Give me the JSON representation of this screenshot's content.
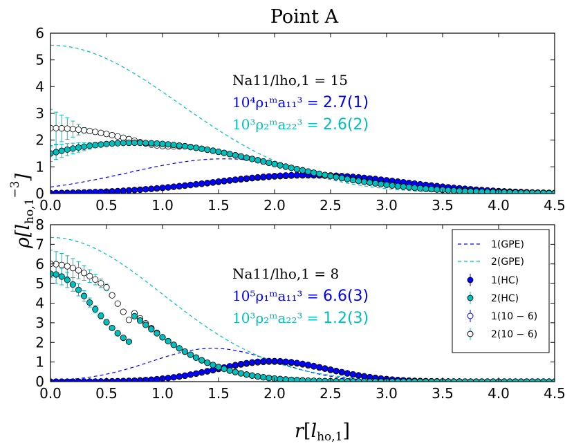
{
  "chart_data": {
    "type": "scatter",
    "title": "Point A",
    "xlabel": "r[l_ho,1]",
    "ylabel": "ρ[l_ho,1^-3]",
    "legend": {
      "position": "top-right",
      "entries": [
        "1(GPE)",
        "2(GPE)",
        "1(HC)",
        "2(HC)",
        "1(10 − 6)",
        "2(10 − 6)"
      ]
    },
    "colors": {
      "series1": "#0000ff",
      "series2": "#00bfbf",
      "open": "#000000"
    },
    "panels": [
      {
        "name": "top",
        "xlim": [
          0.0,
          4.5
        ],
        "ylim": [
          0,
          6
        ],
        "xticks": [
          "0.0",
          "0.5",
          "1.0",
          "1.5",
          "2.0",
          "2.5",
          "3.0",
          "3.5",
          "4.0",
          "4.5"
        ],
        "yticks": [
          "0",
          "1",
          "2",
          "3",
          "4",
          "5",
          "6"
        ],
        "annotations": {
          "line1": "Na11/lho,1 = 15",
          "line2_prefix": "10⁴ρ₁ᵐa₁₁³ = ",
          "line2_value": "2.7(1)",
          "line3_prefix": "10³ρ₂ᵐa₂₂³ = ",
          "line3_value": "2.6(2)"
        },
        "gpe1": {
          "A": 1.3,
          "mu": 1.55,
          "sigma": 0.85
        },
        "gpe2": {
          "A": 5.55,
          "sigma": 1.15
        },
        "hc1": {
          "A": 0.7,
          "mu": 2.3,
          "sigma": 0.85
        },
        "hc2": {
          "A": 1.9,
          "center": 0.75,
          "sigmaL": 0.35,
          "sigmaR": 1.2,
          "r0": 1.5
        },
        "open1": {
          "A": 0.7,
          "mu": 2.3,
          "sigma": 0.85
        },
        "open2": {
          "A": 2.45,
          "sigma": 1.15,
          "blendFrom": 0.75,
          "blendTo": 1.2
        },
        "errHC2": {
          "upTo": 0.55,
          "max": 0.3
        },
        "errOpen2": {
          "upTo": 0.3,
          "max": 0.7
        }
      },
      {
        "name": "bottom",
        "xlim": [
          0.0,
          4.5
        ],
        "ylim": [
          0,
          8
        ],
        "xticks": [
          "0.0",
          "0.5",
          "1.0",
          "1.5",
          "2.0",
          "2.5",
          "3.0",
          "3.5",
          "4.0",
          "4.5"
        ],
        "yticks": [
          "0",
          "1",
          "2",
          "3",
          "4",
          "5",
          "6",
          "7",
          "8"
        ],
        "annotations": {
          "line1": "Na11/lho,1 = 8",
          "line2_prefix": "10⁵ρ₁ᵐa₁₁³ = ",
          "line2_value": "6.6(3)",
          "line3_prefix": "10³ρ₂ᵐa₂₂³ = ",
          "line3_value": "1.2(3)"
        },
        "gpe1": {
          "A": 1.7,
          "mu": 1.45,
          "sigma": 0.55
        },
        "gpe2": {
          "A": 7.35,
          "sigma": 1.0
        },
        "hc1": {
          "A": 1.05,
          "mu": 1.98,
          "sigma": 0.5
        },
        "hc2": {
          "A": 5.5,
          "sigma": 0.75,
          "r0": 0.75
        },
        "open1": {
          "A": 1.05,
          "mu": 1.98,
          "sigma": 0.5
        },
        "open2": {
          "A": 6.0,
          "sigma": 0.75,
          "blendFrom": 0.5,
          "blendTo": 1.0
        },
        "errHC2": {
          "upTo": 0.6,
          "max": 0.5
        },
        "errOpen2": {
          "upTo": 0.6,
          "max": 0.7
        }
      }
    ]
  }
}
